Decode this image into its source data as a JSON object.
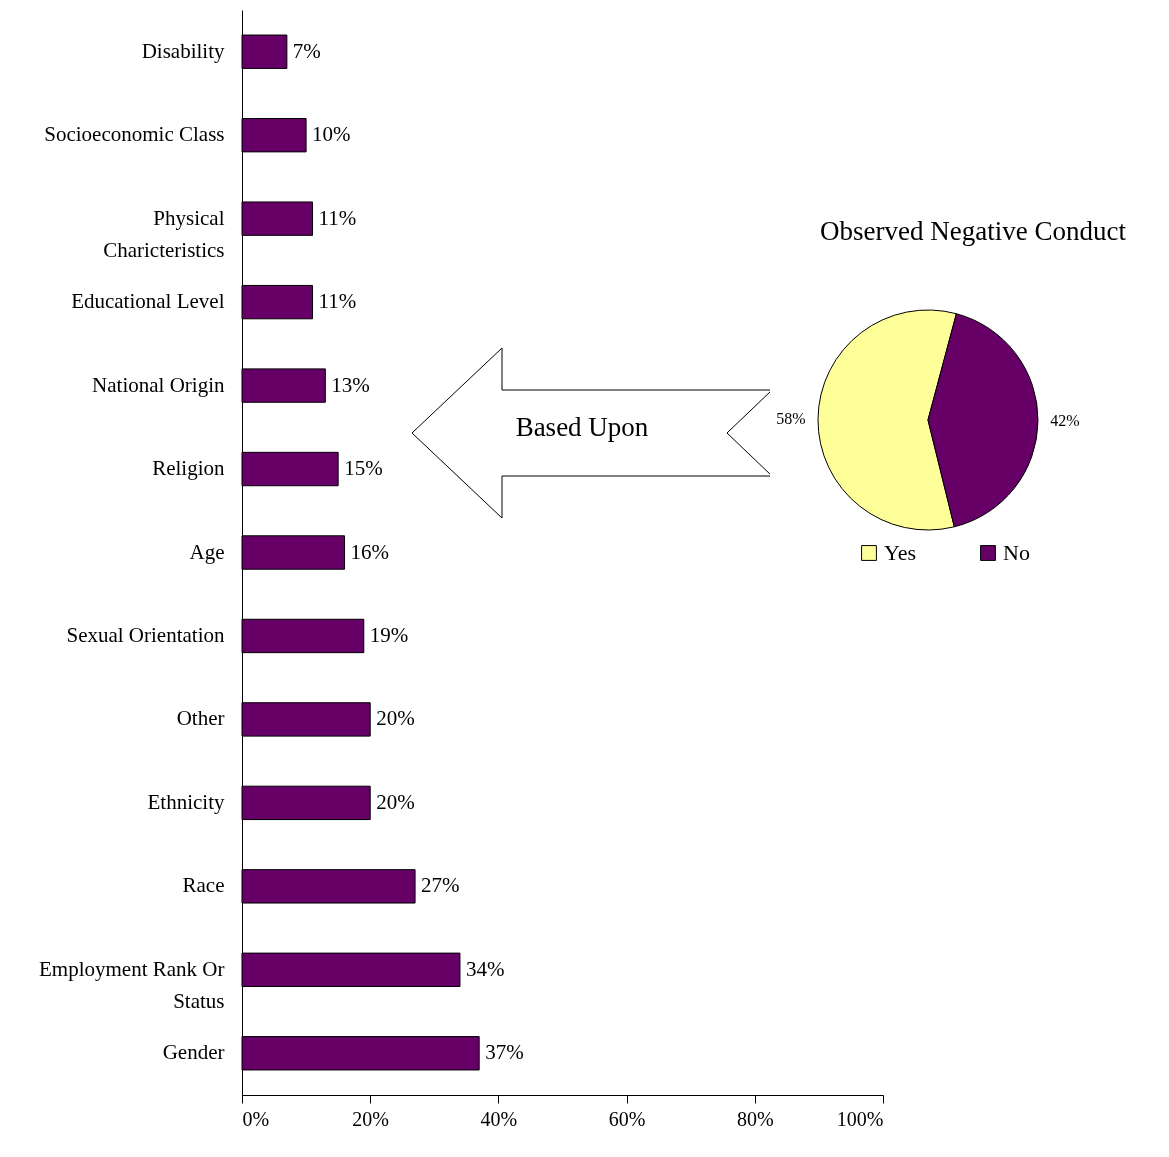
{
  "chart_data": [
    {
      "type": "bar",
      "orientation": "horizontal",
      "categories": [
        "Disability",
        "Socioeconomic Class",
        "Physical Charicteristics",
        "Educational Level",
        "National Origin",
        "Religion",
        "Age",
        "Sexual Orientation",
        "Other",
        "Ethnicity",
        "Race",
        "Employment Rank Or Status",
        "Gender"
      ],
      "values": [
        7,
        10,
        11,
        11,
        13,
        15,
        16,
        19,
        20,
        20,
        27,
        34,
        37
      ],
      "value_labels": [
        "7%",
        "10%",
        "11%",
        "11%",
        "13%",
        "15%",
        "16%",
        "19%",
        "20%",
        "20%",
        "27%",
        "34%",
        "37%"
      ],
      "color": "#660066",
      "xlim": [
        0,
        100
      ],
      "xticks": [
        {
          "value": 0,
          "label": "0%"
        },
        {
          "value": 20,
          "label": "20%"
        },
        {
          "value": 40,
          "label": "40%"
        },
        {
          "value": 60,
          "label": "60%"
        },
        {
          "value": 80,
          "label": "80%"
        },
        {
          "value": 100,
          "label": "100%"
        }
      ],
      "annotations": [
        "Based Upon"
      ]
    },
    {
      "type": "pie",
      "title": "Observed Negative Conduct",
      "categories": [
        "Yes",
        "No"
      ],
      "values": [
        58,
        42
      ],
      "colors": [
        "#ffff99",
        "#660066"
      ],
      "value_labels": [
        "58%",
        "42%"
      ],
      "legend": "bottom"
    }
  ]
}
